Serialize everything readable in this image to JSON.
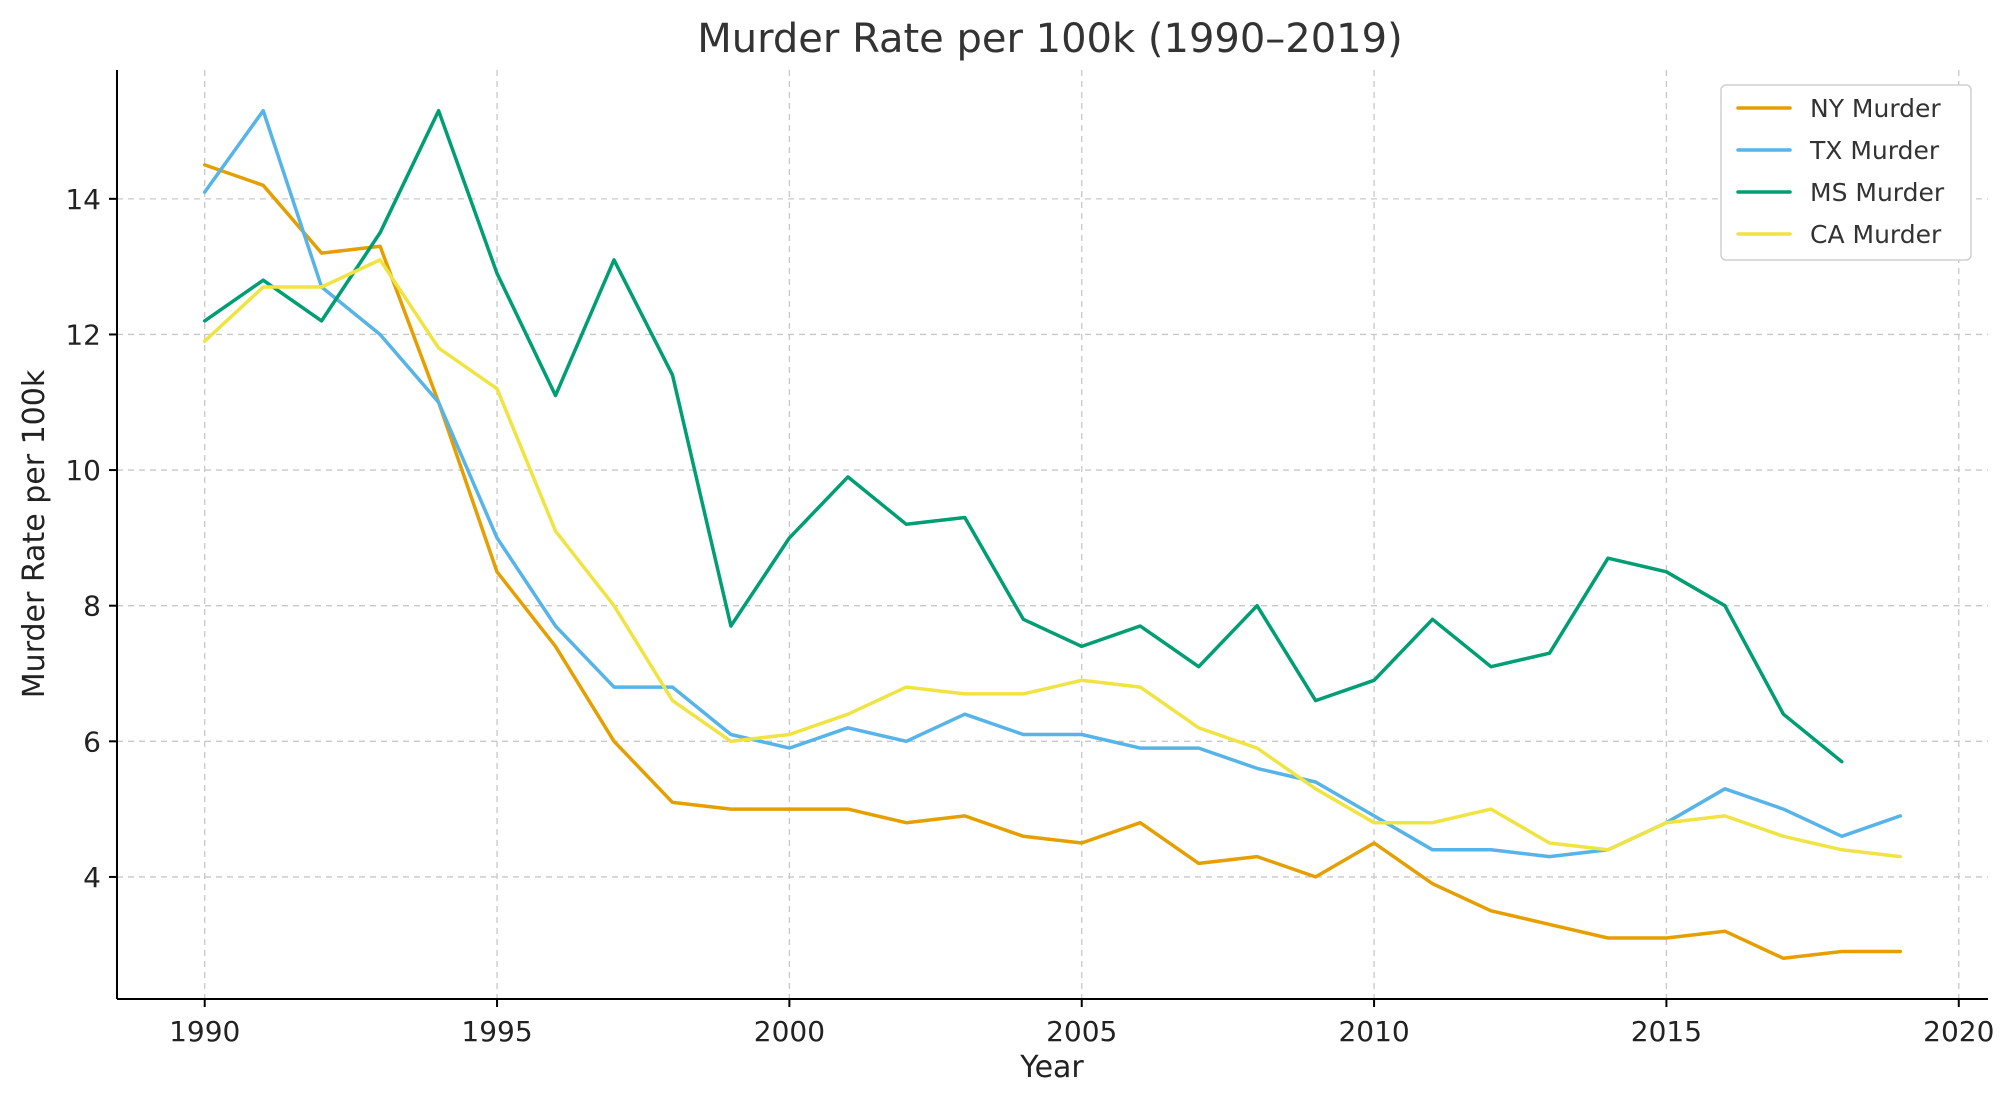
{
  "chart_data": {
    "type": "line",
    "title": "Murder Rate per 100k (1990–2019)",
    "xlabel": "Year",
    "ylabel": "Murder Rate per 100k",
    "xlim": [
      1988.5,
      2020.5
    ],
    "ylim": [
      2.2,
      15.9
    ],
    "xticks": [
      1990,
      1995,
      2000,
      2005,
      2010,
      2015,
      2020
    ],
    "yticks": [
      4,
      6,
      8,
      10,
      12,
      14
    ],
    "grid": true,
    "legend_position": "top-right",
    "x": [
      1990,
      1991,
      1992,
      1993,
      1994,
      1995,
      1996,
      1997,
      1998,
      1999,
      2000,
      2001,
      2002,
      2003,
      2004,
      2005,
      2006,
      2007,
      2008,
      2009,
      2010,
      2011,
      2012,
      2013,
      2014,
      2015,
      2016,
      2017,
      2018,
      2019
    ],
    "series": [
      {
        "name": "NY Murder",
        "color": "#e69f00",
        "values": [
          14.5,
          14.2,
          13.2,
          13.3,
          11.0,
          8.5,
          7.4,
          6.0,
          5.1,
          5.0,
          5.0,
          5.0,
          4.8,
          4.9,
          4.6,
          4.5,
          4.8,
          4.2,
          4.3,
          4.0,
          4.5,
          3.9,
          3.5,
          3.3,
          3.1,
          3.1,
          3.2,
          2.8,
          2.9,
          2.9
        ]
      },
      {
        "name": "TX Murder",
        "color": "#56b4e9",
        "values": [
          14.1,
          15.3,
          12.7,
          12.0,
          11.0,
          9.0,
          7.7,
          6.8,
          6.8,
          6.1,
          5.9,
          6.2,
          6.0,
          6.4,
          6.1,
          6.1,
          5.9,
          5.9,
          5.6,
          5.4,
          4.9,
          4.4,
          4.4,
          4.3,
          4.4,
          4.8,
          5.3,
          5.0,
          4.6,
          4.9
        ]
      },
      {
        "name": "MS Murder",
        "color": "#009e73",
        "values": [
          12.2,
          12.8,
          12.2,
          13.5,
          15.3,
          12.9,
          11.1,
          13.1,
          11.4,
          7.7,
          9.0,
          9.9,
          9.2,
          9.3,
          7.8,
          7.4,
          7.7,
          7.1,
          8.0,
          6.6,
          6.9,
          7.8,
          7.1,
          7.3,
          8.7,
          8.5,
          8.0,
          6.4,
          5.7,
          null
        ]
      },
      {
        "name": "CA Murder",
        "color": "#f0e442",
        "values": [
          11.9,
          12.7,
          12.7,
          13.1,
          11.8,
          11.2,
          9.1,
          8.0,
          6.6,
          6.0,
          6.1,
          6.4,
          6.8,
          6.7,
          6.7,
          6.9,
          6.8,
          6.2,
          5.9,
          5.3,
          4.8,
          4.8,
          5.0,
          4.5,
          4.4,
          4.8,
          4.9,
          4.6,
          4.4,
          4.3
        ]
      }
    ]
  }
}
